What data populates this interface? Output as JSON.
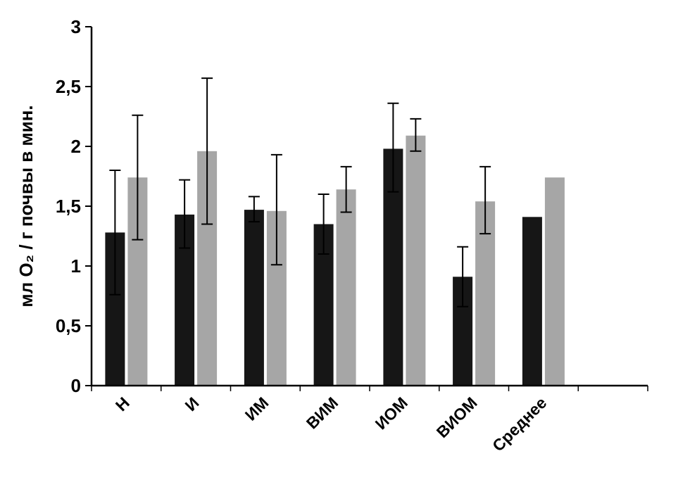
{
  "chart_data": {
    "type": "bar",
    "title": "",
    "xlabel": "",
    "ylabel": "мл О₂ / г почвы в мин.",
    "categories": [
      "Н",
      "И",
      "ИМ",
      "ВИМ",
      "ИОМ",
      "ВИОМ",
      "Среднее"
    ],
    "ylim": [
      0,
      3
    ],
    "yticks": [
      0,
      0.5,
      1,
      1.5,
      2,
      2.5,
      3
    ],
    "ytick_labels": [
      "0",
      "0,5",
      "1",
      "1,5",
      "2",
      "2,5",
      "3"
    ],
    "grid": false,
    "legend": "none",
    "axis_color": "#000000",
    "series": [
      {
        "name": "series-1-black",
        "color": "#161616",
        "values": [
          1.28,
          1.43,
          1.47,
          1.35,
          1.98,
          0.91,
          1.41
        ],
        "error_low": [
          0.76,
          1.15,
          1.37,
          1.1,
          1.62,
          0.66,
          null
        ],
        "error_high": [
          1.8,
          1.72,
          1.58,
          1.6,
          2.36,
          1.16,
          null
        ]
      },
      {
        "name": "series-2-gray",
        "color": "#a6a6a6",
        "values": [
          1.74,
          1.96,
          1.46,
          1.64,
          2.09,
          1.54,
          1.74
        ],
        "error_low": [
          1.22,
          1.35,
          1.01,
          1.45,
          1.96,
          1.27,
          null
        ],
        "error_high": [
          2.26,
          2.57,
          1.93,
          1.83,
          2.23,
          1.83,
          null
        ]
      }
    ]
  }
}
